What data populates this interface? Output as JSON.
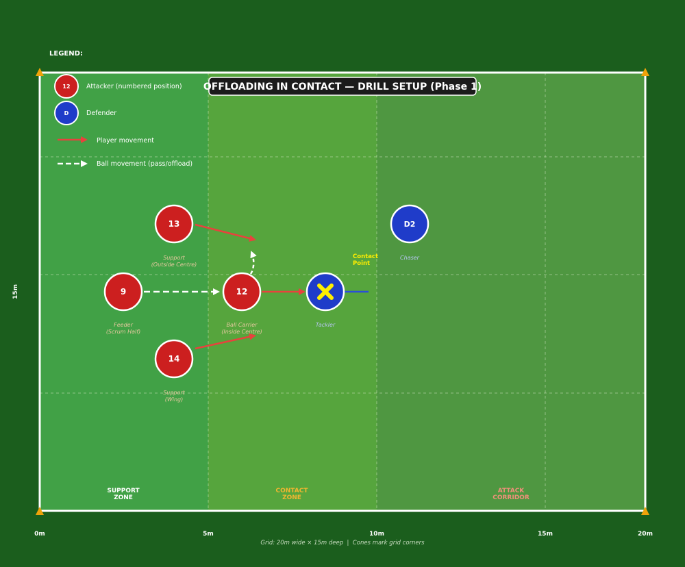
{
  "title": "OFFLOADING IN CONTACT — DRILL SETUP (Phase 1)",
  "legend": {
    "heading": "LEGEND:",
    "attacker_badge": "12",
    "attacker_label": "Attacker (numbered position)",
    "defender_badge": "D",
    "defender_label": "Defender",
    "player_movement": "Player movement",
    "ball_movement": "Ball movement (pass/offload)"
  },
  "zones": {
    "support": [
      "SUPPORT",
      "ZONE"
    ],
    "contact": [
      "CONTACT",
      "ZONE"
    ],
    "attack": [
      "ATTACK",
      "CORRIDOR"
    ]
  },
  "axis": {
    "x_ticks": [
      "0m",
      "5m",
      "10m",
      "15m",
      "20m"
    ],
    "y_label": "15m",
    "footnote": "Grid: 20m wide × 15m deep  |  Cones mark grid corners"
  },
  "players": {
    "p13": {
      "number": "13",
      "role": [
        "Support",
        "(Outside Centre)"
      ]
    },
    "p9": {
      "number": "9",
      "role": [
        "Feeder",
        "(Scrum Half)"
      ]
    },
    "p12": {
      "number": "12",
      "role": [
        "Ball Carrier",
        "(Inside Centre)"
      ]
    },
    "p14": {
      "number": "14",
      "role": [
        "Support",
        "(Wing)"
      ]
    },
    "tackler": {
      "role": "Tackler"
    },
    "d2": {
      "number": "D2",
      "role": "Chaser"
    }
  },
  "contact_point": [
    "Contact",
    "Point"
  ],
  "colors": {
    "attacker": "#cc1f1f",
    "defender": "#1f3cc9",
    "movement_arrow": "#e8423d",
    "cone": "#f0a30a",
    "contact_label": "#ffee00"
  }
}
